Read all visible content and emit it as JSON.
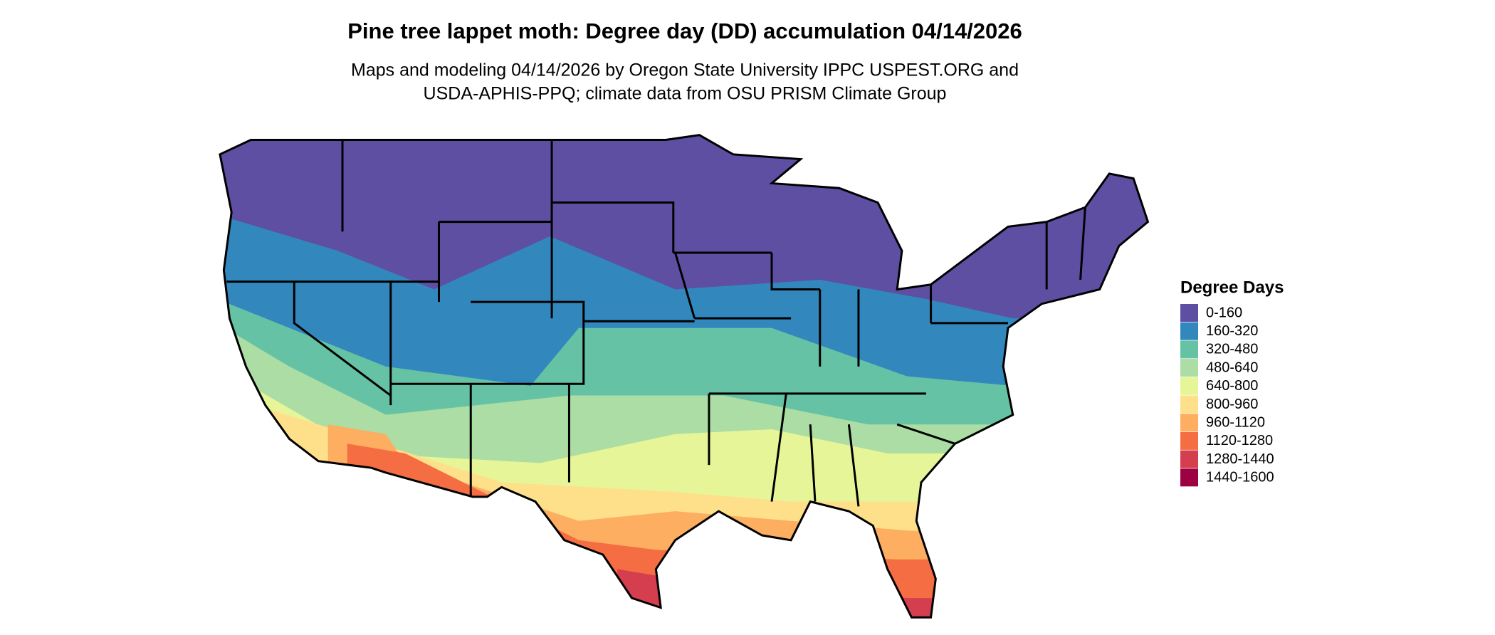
{
  "header": {
    "title": "Pine tree lappet moth: Degree day (DD) accumulation 04/14/2026",
    "subtitle_lines": [
      "Maps and modeling 04/14/2026 by Oregon State University IPPC USPEST.ORG and",
      "USDA-APHIS-PPQ; climate data from OSU PRISM Climate Group"
    ]
  },
  "legend": {
    "title": "Degree Days",
    "items": [
      {
        "label": "0-160",
        "color": "#5e4fa2"
      },
      {
        "label": "160-320",
        "color": "#3288bd"
      },
      {
        "label": "320-480",
        "color": "#66c2a5"
      },
      {
        "label": "480-640",
        "color": "#abdda4"
      },
      {
        "label": "640-800",
        "color": "#e6f598"
      },
      {
        "label": "800-960",
        "color": "#fee08b"
      },
      {
        "label": "960-1120",
        "color": "#fdae61"
      },
      {
        "label": "1120-1280",
        "color": "#f46d43"
      },
      {
        "label": "1280-1440",
        "color": "#d53e4f"
      },
      {
        "label": "1440-1600",
        "color": "#9e0142"
      }
    ]
  }
}
